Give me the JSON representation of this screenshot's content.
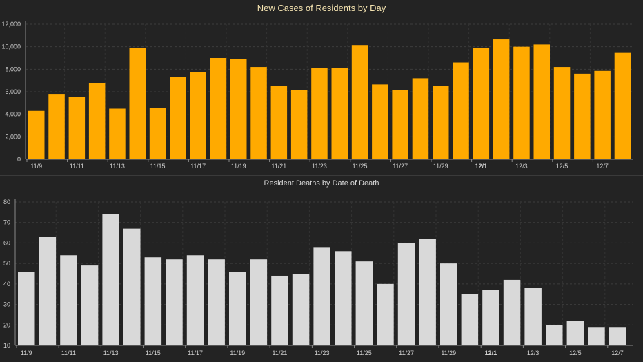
{
  "chart_data": [
    {
      "type": "bar",
      "title": "New Cases of Residents by Day",
      "categories": [
        "11/9",
        "11/10",
        "11/11",
        "11/12",
        "11/13",
        "11/14",
        "11/15",
        "11/16",
        "11/17",
        "11/18",
        "11/19",
        "11/20",
        "11/21",
        "11/22",
        "11/23",
        "11/24",
        "11/25",
        "11/26",
        "11/27",
        "11/28",
        "11/29",
        "11/30",
        "12/1",
        "12/2",
        "12/3",
        "12/4",
        "12/5",
        "12/6",
        "12/7",
        "12/8"
      ],
      "tick_labels": [
        "11/9",
        "11/11",
        "11/13",
        "11/15",
        "11/17",
        "11/19",
        "11/21",
        "11/23",
        "11/25",
        "11/27",
        "11/29",
        "12/1",
        "12/3",
        "12/5",
        "12/7"
      ],
      "bold_tick": "12/1",
      "values": [
        4300,
        5750,
        5550,
        6750,
        4500,
        9900,
        4550,
        7300,
        7750,
        9000,
        8900,
        8200,
        6500,
        6150,
        8100,
        8100,
        10150,
        6650,
        6150,
        7200,
        6500,
        8600,
        9900,
        10650,
        10000,
        10200,
        8200,
        7600,
        7850,
        9450
      ],
      "ylim": [
        0,
        12000
      ],
      "yticks": [
        "0",
        "2,000",
        "4,000",
        "6,000",
        "8,000",
        "10,000",
        "12,000"
      ],
      "color": "#ffaa00",
      "grid": true
    },
    {
      "type": "bar",
      "title": "Resident Deaths by Date of Death",
      "categories": [
        "11/9",
        "11/10",
        "11/11",
        "11/12",
        "11/13",
        "11/14",
        "11/15",
        "11/16",
        "11/17",
        "11/18",
        "11/19",
        "11/20",
        "11/21",
        "11/22",
        "11/23",
        "11/24",
        "11/25",
        "11/26",
        "11/27",
        "11/28",
        "11/29",
        "11/30",
        "12/1",
        "12/2",
        "12/3",
        "12/4",
        "12/5",
        "12/6",
        "12/7"
      ],
      "tick_labels": [
        "11/9",
        "11/11",
        "11/13",
        "11/15",
        "11/17",
        "11/19",
        "11/21",
        "11/23",
        "11/25",
        "11/27",
        "11/29",
        "12/1",
        "12/3",
        "12/5",
        "12/7"
      ],
      "bold_tick": "12/1",
      "values": [
        46,
        63,
        54,
        49,
        74,
        67,
        53,
        52,
        54,
        52,
        46,
        52,
        44,
        45,
        58,
        56,
        51,
        40,
        60,
        62,
        50,
        35,
        37,
        42,
        38,
        20,
        22,
        19,
        19
      ],
      "ylim": [
        10,
        80
      ],
      "yticks": [
        "10",
        "20",
        "30",
        "40",
        "50",
        "60",
        "70",
        "80"
      ],
      "color": "#d9d9d9",
      "grid": true
    }
  ]
}
